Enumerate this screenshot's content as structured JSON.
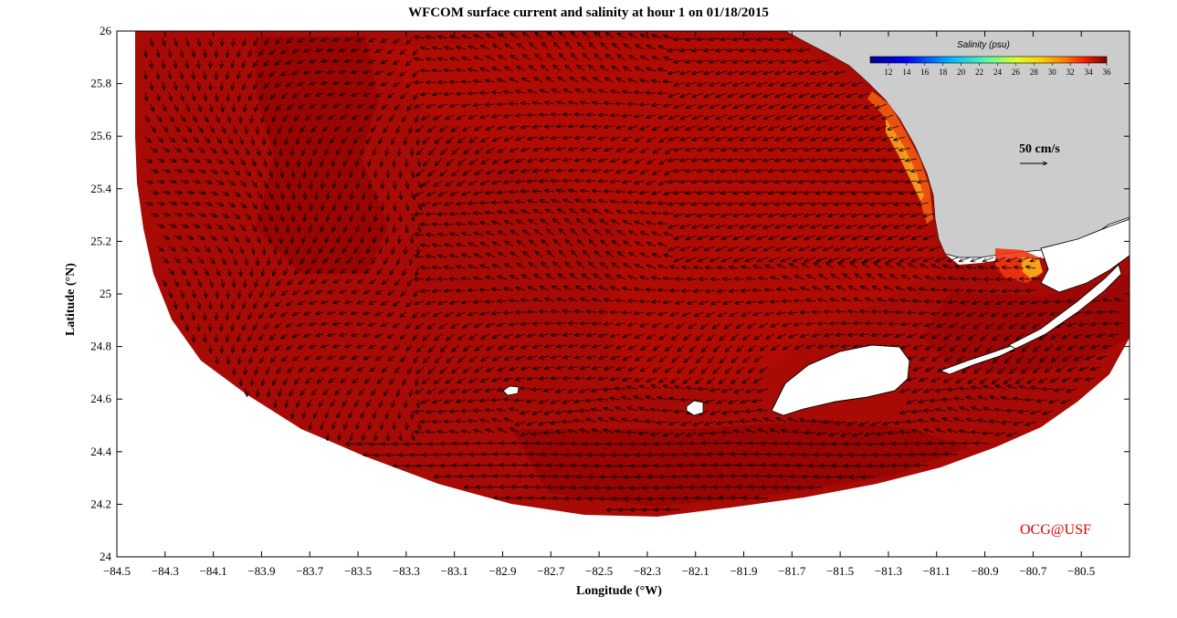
{
  "chart_data": {
    "type": "heatmap",
    "title": "WFCOM surface current and salinity at hour 1 on 01/18/2015",
    "xlabel": "Longitude (°W)",
    "ylabel": "Latitude (°N)",
    "xlim": [
      -84.5,
      -80.3
    ],
    "ylim": [
      24.0,
      26.0
    ],
    "x_ticks": [
      -84.5,
      -84.3,
      -84.1,
      -83.9,
      -83.7,
      -83.5,
      -83.3,
      -83.1,
      -82.9,
      -82.7,
      -82.5,
      -82.3,
      -82.1,
      -81.9,
      -81.7,
      -81.5,
      -81.3,
      -81.1,
      -80.9,
      -80.7,
      -80.5
    ],
    "y_ticks": [
      24.0,
      24.2,
      24.4,
      24.6,
      24.8,
      25.0,
      25.2,
      25.4,
      25.6,
      25.8,
      26.0
    ],
    "colorbar": {
      "title": "Salinity (psu)",
      "range": [
        10,
        36
      ],
      "ticks": [
        12,
        14,
        16,
        18,
        20,
        22,
        24,
        26,
        28,
        30,
        32,
        34,
        36
      ]
    },
    "field": "surface salinity (mostly 34–36 psu; lower near the southwest Florida coast)",
    "vector_scale": {
      "label": "50 cm/s",
      "value": 50
    },
    "grid": false,
    "land_color": "#cccccc"
  },
  "credit": "OCG@USF"
}
